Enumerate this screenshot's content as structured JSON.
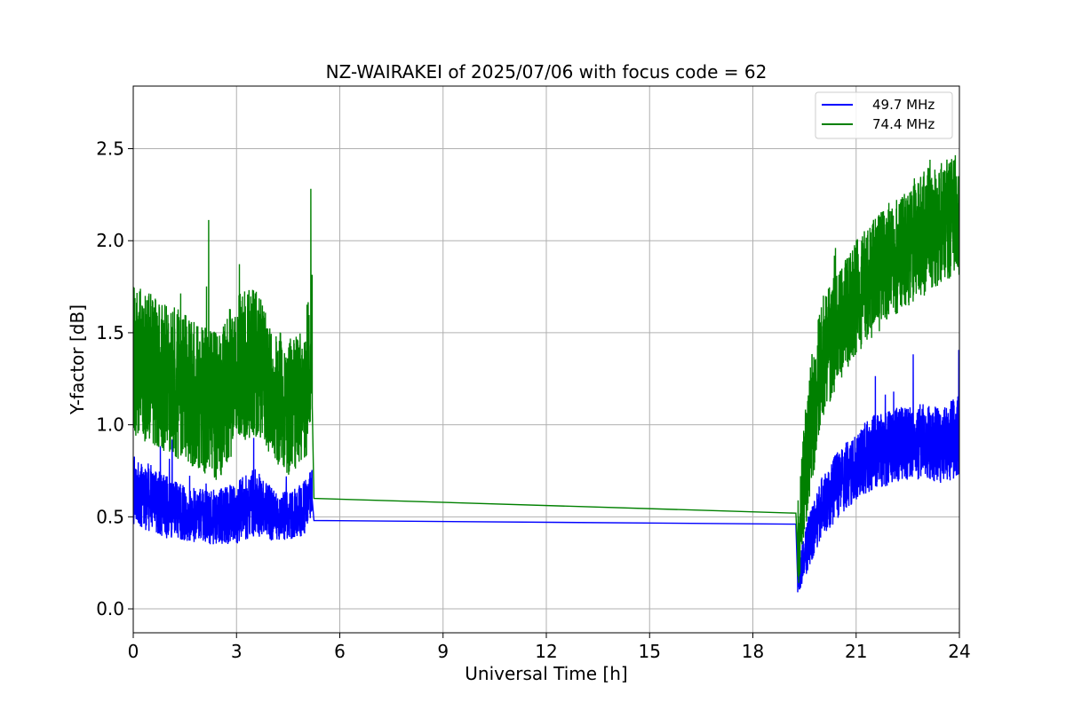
{
  "chart_data": {
    "type": "line",
    "title": "NZ-WAIRAKEI of 2025/07/06 with focus code = 62",
    "xlabel": "Universal Time [h]",
    "ylabel": "Y-factor [dB]",
    "xlim": [
      0,
      24
    ],
    "ylim": [
      -0.13,
      2.84
    ],
    "xticks": [
      0,
      3,
      6,
      9,
      12,
      15,
      18,
      21,
      24
    ],
    "yticks": [
      "0.0",
      "0.5",
      "1.0",
      "1.5",
      "2.0",
      "2.5"
    ],
    "grid": true,
    "legend_position": "top-right",
    "series": [
      {
        "name": "49.7 MHz",
        "color": "#0000ff",
        "x": [
          0,
          0.5,
          1.0,
          1.5,
          2.0,
          2.5,
          3.0,
          3.5,
          4.0,
          4.5,
          5.0,
          5.2,
          5.25,
          19.25,
          19.3,
          19.6,
          20.0,
          20.5,
          21.0,
          21.5,
          22.0,
          22.5,
          23.0,
          23.5,
          24.0
        ],
        "y": [
          0.65,
          0.6,
          0.55,
          0.52,
          0.5,
          0.5,
          0.52,
          0.58,
          0.52,
          0.5,
          0.55,
          0.65,
          0.48,
          0.46,
          0.15,
          0.35,
          0.55,
          0.68,
          0.78,
          0.85,
          0.88,
          0.9,
          0.92,
          0.88,
          0.95
        ],
        "band": [
          0.5,
          0.5,
          0.45,
          0.4,
          0.4,
          0.4,
          0.45,
          0.5,
          0.4,
          0.35,
          0.4,
          0.4,
          0,
          0,
          0.2,
          0.4,
          0.45,
          0.5,
          0.5,
          0.55,
          0.55,
          0.55,
          0.55,
          0.55,
          0.6
        ]
      },
      {
        "name": "74.4 MHz",
        "color": "#008000",
        "x": [
          0,
          0.5,
          1.0,
          1.5,
          2.0,
          2.5,
          3.0,
          3.5,
          4.0,
          4.5,
          5.0,
          5.2,
          5.25,
          19.25,
          19.3,
          19.6,
          20.0,
          20.5,
          21.0,
          21.5,
          22.0,
          22.5,
          23.0,
          23.5,
          24.0
        ],
        "y": [
          1.35,
          1.3,
          1.25,
          1.2,
          1.15,
          1.1,
          1.3,
          1.35,
          1.2,
          1.1,
          1.15,
          1.5,
          0.6,
          0.52,
          0.3,
          0.9,
          1.35,
          1.55,
          1.7,
          1.8,
          1.9,
          1.95,
          2.05,
          2.1,
          2.15
        ],
        "band": [
          1.1,
          1.1,
          1.1,
          1.1,
          1.1,
          1.1,
          1.1,
          1.1,
          1.0,
          1.0,
          1.0,
          1.1,
          0,
          0,
          0.6,
          1.0,
          0.9,
          0.85,
          0.85,
          0.85,
          0.85,
          0.85,
          0.9,
          0.9,
          0.9
        ]
      }
    ]
  }
}
